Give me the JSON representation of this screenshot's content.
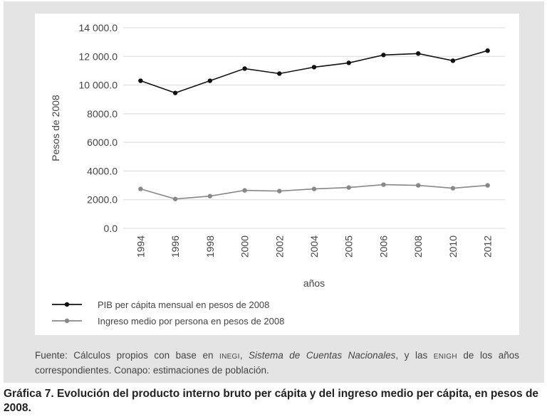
{
  "chart_data": {
    "type": "line",
    "categories": [
      "1994",
      "1996",
      "1998",
      "2000",
      "2002",
      "2004",
      "2005",
      "2006",
      "2008",
      "2010",
      "2012"
    ],
    "series": [
      {
        "name": "PIB per cápita mensual en pesos de 2008",
        "values": [
          10300,
          9450,
          10300,
          11150,
          10800,
          11250,
          11550,
          12100,
          12200,
          11700,
          12400
        ],
        "color": "#111111"
      },
      {
        "name": "Ingreso medio por persona en pesos de 2008",
        "values": [
          2750,
          2050,
          2250,
          2650,
          2600,
          2750,
          2850,
          3050,
          3000,
          2800,
          3000
        ],
        "color": "#888888"
      }
    ],
    "yticks": [
      "0.0",
      "2000.0",
      "4000.0",
      "6000.0",
      "8000.0",
      "10 000.0",
      "12 000.0",
      "14 000.0"
    ],
    "ylim": [
      0,
      14000
    ],
    "xlabel": "años",
    "ylabel": "Pesos de 2008",
    "grid": true,
    "legend": "bottom"
  },
  "source": {
    "prefix": "Fuente: Cálculos propios con base en ",
    "inegi": "INEGI",
    "sep1": ", ",
    "italic": "Sistema de Cuentas Nacionales",
    "mid": ", y las ",
    "enigh": "ENIGH",
    "suffix": " de los años correspondientes. Conapo: estimaciones de población."
  },
  "caption": "Gráfica 7. Evolución del producto interno bruto per cápita y del ingreso medio per cápita, en pesos de 2008."
}
